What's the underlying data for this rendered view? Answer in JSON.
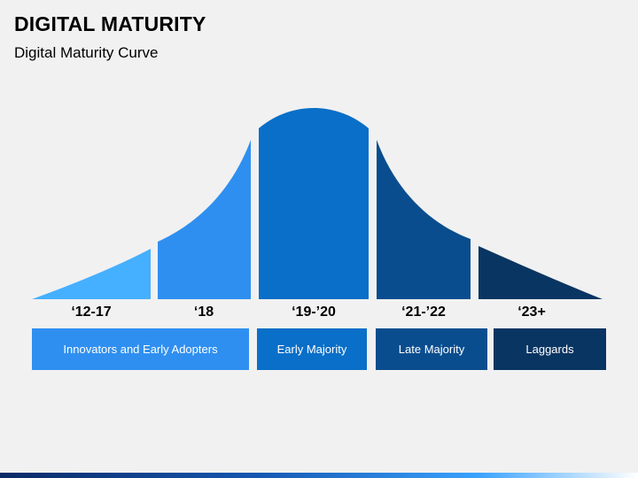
{
  "header": {
    "title": "DIGITAL MATURITY",
    "subtitle": "Digital Maturity Curve"
  },
  "segments": [
    {
      "year": "‘12-17",
      "label": "Innovators and Early Adopters",
      "color": "#45b0ff"
    },
    {
      "year": "‘18",
      "label": "",
      "color": "#2f8ff0"
    },
    {
      "year": "‘19-’20",
      "label": "Early Majority",
      "color": "#0a6fc8"
    },
    {
      "year": "‘21-’22",
      "label": "Late Majority",
      "color": "#0a4d8f"
    },
    {
      "year": "‘23+",
      "label": "Laggards",
      "color": "#093562"
    }
  ],
  "legend_box_colors": {
    "innovators": "#2f8ff0",
    "early_majority": "#0a6fc8",
    "late_majority": "#0a4d8f",
    "laggards": "#093562"
  }
}
